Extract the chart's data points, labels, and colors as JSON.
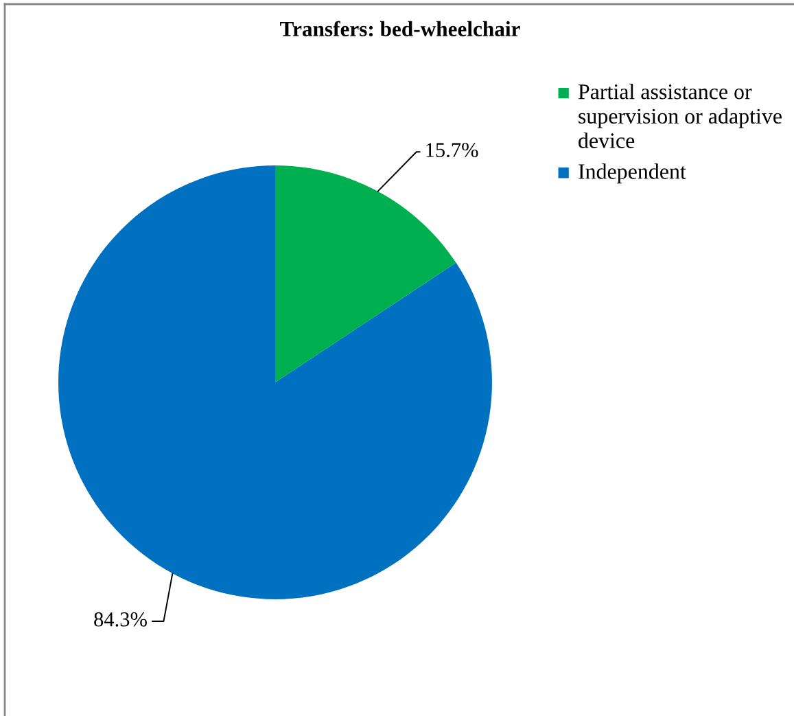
{
  "chart_data": {
    "type": "pie",
    "title": "Transfers: bed-wheelchair",
    "categories": [
      "Partial assistance or supervision or adaptive device",
      "Independent"
    ],
    "values": [
      15.7,
      84.3
    ],
    "colors": [
      "#00b050",
      "#0070c0"
    ],
    "value_labels": [
      "15.7%",
      "84.3%"
    ],
    "legend": "top right"
  }
}
